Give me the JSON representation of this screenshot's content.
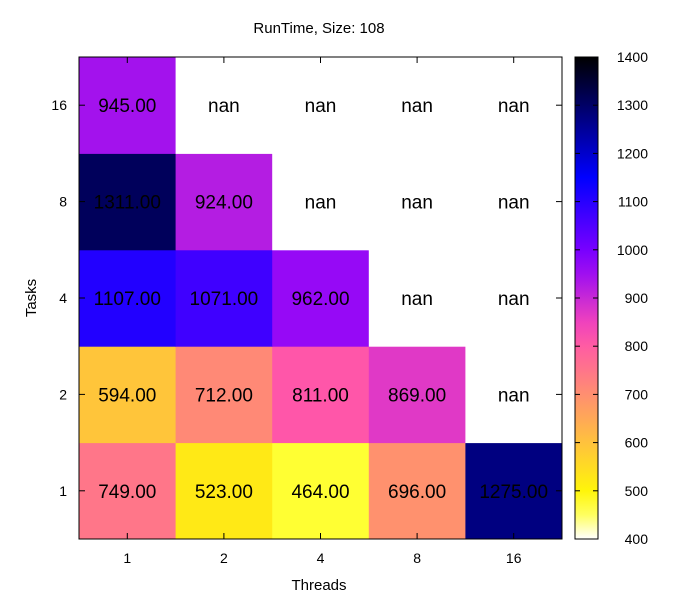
{
  "chart_data": {
    "type": "heatmap",
    "title": "RunTime, Size: 108",
    "xlabel": "Threads",
    "ylabel": "Tasks",
    "x_categories": [
      "1",
      "2",
      "4",
      "8",
      "16"
    ],
    "y_categories": [
      "1",
      "2",
      "4",
      "8",
      "16"
    ],
    "cells": [
      {
        "x": "1",
        "y": "1",
        "value": 749,
        "label": "749.00"
      },
      {
        "x": "2",
        "y": "1",
        "value": 523,
        "label": "523.00"
      },
      {
        "x": "4",
        "y": "1",
        "value": 464,
        "label": "464.00"
      },
      {
        "x": "8",
        "y": "1",
        "value": 696,
        "label": "696.00"
      },
      {
        "x": "16",
        "y": "1",
        "value": 1275,
        "label": "1275.00"
      },
      {
        "x": "1",
        "y": "2",
        "value": 594,
        "label": "594.00"
      },
      {
        "x": "2",
        "y": "2",
        "value": 712,
        "label": "712.00"
      },
      {
        "x": "4",
        "y": "2",
        "value": 811,
        "label": "811.00"
      },
      {
        "x": "8",
        "y": "2",
        "value": 869,
        "label": "869.00"
      },
      {
        "x": "16",
        "y": "2",
        "value": null,
        "label": "nan"
      },
      {
        "x": "1",
        "y": "4",
        "value": 1107,
        "label": "1107.00"
      },
      {
        "x": "2",
        "y": "4",
        "value": 1071,
        "label": "1071.00"
      },
      {
        "x": "4",
        "y": "4",
        "value": 962,
        "label": "962.00"
      },
      {
        "x": "8",
        "y": "4",
        "value": null,
        "label": "nan"
      },
      {
        "x": "16",
        "y": "4",
        "value": null,
        "label": "nan"
      },
      {
        "x": "1",
        "y": "8",
        "value": 1311,
        "label": "1311.00"
      },
      {
        "x": "2",
        "y": "8",
        "value": 924,
        "label": "924.00"
      },
      {
        "x": "4",
        "y": "8",
        "value": null,
        "label": "nan"
      },
      {
        "x": "8",
        "y": "8",
        "value": null,
        "label": "nan"
      },
      {
        "x": "16",
        "y": "8",
        "value": null,
        "label": "nan"
      },
      {
        "x": "1",
        "y": "16",
        "value": 945,
        "label": "945.00"
      },
      {
        "x": "2",
        "y": "16",
        "value": null,
        "label": "nan"
      },
      {
        "x": "4",
        "y": "16",
        "value": null,
        "label": "nan"
      },
      {
        "x": "8",
        "y": "16",
        "value": null,
        "label": "nan"
      },
      {
        "x": "16",
        "y": "16",
        "value": null,
        "label": "nan"
      }
    ],
    "colorbar": {
      "range": [
        400,
        1400
      ],
      "ticks": [
        "400",
        "500",
        "600",
        "700",
        "800",
        "900",
        "1000",
        "1100",
        "1200",
        "1300",
        "1400"
      ],
      "palette": "gnuplot-rgbformulae-30-31-32"
    },
    "missing_color": "#ffffff"
  }
}
